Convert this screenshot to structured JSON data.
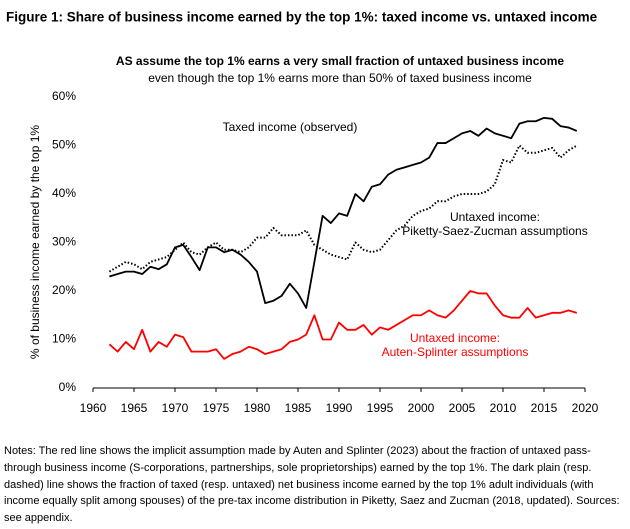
{
  "header": {
    "title": "Figure 1: Share of business income earned by the top 1%: taxed income vs. untaxed income"
  },
  "chart_data": {
    "type": "line",
    "title": "AS assume the top 1% earns a very small fraction of untaxed business income",
    "subtitle": "even though the top 1% earns more than 50% of taxed business income",
    "y_label": "% of business income earned by the top 1%",
    "x": [
      1962,
      1963,
      1964,
      1965,
      1966,
      1967,
      1968,
      1969,
      1970,
      1971,
      1972,
      1973,
      1974,
      1975,
      1976,
      1977,
      1978,
      1979,
      1980,
      1981,
      1982,
      1983,
      1984,
      1985,
      1986,
      1987,
      1988,
      1989,
      1990,
      1991,
      1992,
      1993,
      1994,
      1995,
      1996,
      1997,
      1998,
      1999,
      2000,
      2001,
      2002,
      2003,
      2004,
      2005,
      2006,
      2007,
      2008,
      2009,
      2010,
      2011,
      2012,
      2013,
      2014,
      2015,
      2016,
      2017,
      2018,
      2019
    ],
    "xlim": [
      1960,
      2020
    ],
    "xticks": [
      1960,
      1965,
      1970,
      1975,
      1980,
      1985,
      1990,
      1995,
      2000,
      2005,
      2010,
      2015,
      2020
    ],
    "ylim": [
      0,
      60
    ],
    "yticks": [
      {
        "value": 0,
        "label": "0%"
      },
      {
        "value": 10,
        "label": "10%"
      },
      {
        "value": 20,
        "label": "20%"
      },
      {
        "value": 30,
        "label": "30%"
      },
      {
        "value": 40,
        "label": "40%"
      },
      {
        "value": 50,
        "label": "50%"
      },
      {
        "value": 60,
        "label": "60%"
      }
    ],
    "series": [
      {
        "label_lines": [
          "Taxed income (observed)"
        ],
        "color": "#000000",
        "dash": "solid",
        "values": [
          23,
          23.5,
          24,
          24,
          23.5,
          25,
          24.5,
          25.5,
          29,
          29.5,
          27,
          24.3,
          29,
          29,
          28,
          28.5,
          27.5,
          26,
          24,
          17.5,
          18,
          19,
          21.5,
          19.5,
          16.5,
          26,
          35.5,
          34,
          36,
          35.5,
          40,
          38.5,
          41.5,
          42,
          44,
          45,
          45.5,
          46,
          46.5,
          47.5,
          50.5,
          50.5,
          51.5,
          52.5,
          53,
          52,
          53.5,
          52.5,
          52,
          51.5,
          54.5,
          55,
          55,
          55.7,
          55.5,
          54,
          53.7,
          53
        ]
      },
      {
        "label_lines": [
          "Untaxed income:",
          "Piketty-Saez-Zucman assumptions"
        ],
        "color": "#000000",
        "dash": "dotted",
        "values": [
          24,
          25,
          26,
          25.5,
          24.5,
          26,
          26.5,
          27,
          28.5,
          30,
          28,
          27.5,
          29,
          30,
          28.5,
          28.5,
          28,
          29,
          31,
          31,
          33,
          31.5,
          31.5,
          31.5,
          32.5,
          29.5,
          28.5,
          27.5,
          27,
          26.5,
          30,
          28.5,
          28,
          28.5,
          30.5,
          32.5,
          33.5,
          35.5,
          36.5,
          37,
          38.5,
          38.5,
          39.5,
          40,
          40,
          40,
          40.5,
          42,
          47,
          46.5,
          50,
          48.5,
          48.5,
          49,
          49.5,
          47.5,
          49,
          50
        ]
      },
      {
        "label_lines": [
          "Untaxed income:",
          "Auten-Splinter assumptions"
        ],
        "color": "#ff0000",
        "dash": "solid",
        "values": [
          9,
          7.5,
          9.5,
          8,
          12,
          7.5,
          9.5,
          8.5,
          11,
          10.5,
          7.5,
          7.5,
          7.5,
          8,
          6,
          7,
          7.5,
          8.5,
          8,
          7,
          7.5,
          8,
          9.5,
          10,
          11,
          15,
          10,
          10,
          13.5,
          12,
          12,
          13,
          11,
          12.5,
          12,
          13,
          14,
          15,
          15,
          16,
          15,
          14.5,
          16,
          18,
          20,
          19.5,
          19.5,
          17,
          15,
          14.5,
          14.5,
          16.5,
          14.5,
          15,
          15.5,
          15.5,
          16,
          15.5
        ]
      }
    ]
  },
  "notes": "Notes: The red line shows the implicit assumption made by Auten and Splinter (2023) about the fraction of untaxed pass-through business income (S-corporations, partnerships, sole proprietorships) earned by the top 1%. The dark plain (resp. dashed) line shows the fraction of taxed (resp. untaxed) net business income earned by the top 1% adult individuals (with income equally split among spouses) of the pre-tax income distribution in Piketty, Saez and Zucman (2018, updated). Sources: see appendix."
}
